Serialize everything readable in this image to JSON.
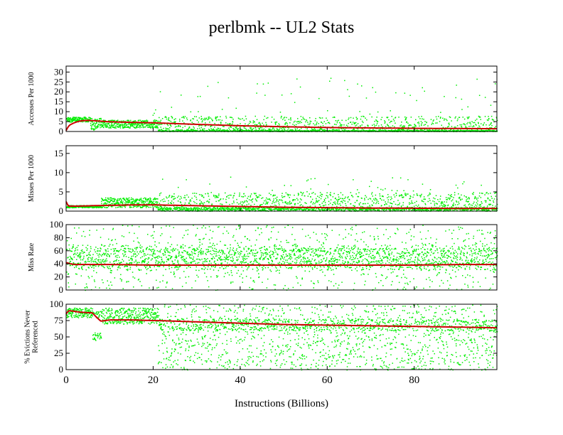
{
  "title": "perlbmk -- UL2  Stats",
  "xlabel": "Instructions (Billions)",
  "colors": {
    "scatter": "#00ee00",
    "trend": "#cc0000",
    "frame": "#000000"
  },
  "chart_data": [
    {
      "type": "scatter",
      "ylabel_lines": [
        "Accesses Per 1000"
      ],
      "xlim": [
        0,
        99
      ],
      "ylim": [
        0,
        33
      ],
      "yticks": [
        0,
        5,
        10,
        15,
        20,
        25,
        30
      ],
      "xticks": [
        0,
        20,
        40,
        60,
        80
      ],
      "trend": {
        "x": [
          0,
          0.5,
          1,
          2,
          3,
          4,
          5,
          6,
          8,
          10,
          15,
          20,
          21,
          30,
          40,
          50,
          60,
          70,
          80,
          90,
          99
        ],
        "y": [
          0.5,
          2.5,
          3.5,
          4.5,
          5.2,
          5.5,
          5.6,
          5.5,
          5.2,
          4.9,
          4.6,
          4.4,
          4.3,
          3.6,
          2.9,
          2.4,
          2.0,
          1.8,
          1.6,
          1.5,
          1.4
        ]
      }
    },
    {
      "type": "scatter",
      "ylabel_lines": [
        "Misses Per 1000"
      ],
      "xlim": [
        0,
        99
      ],
      "ylim": [
        0,
        17
      ],
      "yticks": [
        0,
        5,
        10,
        15
      ],
      "xticks": [
        0,
        20,
        40,
        60,
        80
      ],
      "trend": {
        "x": [
          0,
          0.5,
          1,
          3,
          6,
          10,
          15,
          20,
          21,
          30,
          40,
          50,
          60,
          70,
          80,
          90,
          99
        ],
        "y": [
          2.5,
          1.3,
          1.3,
          1.3,
          1.4,
          1.5,
          1.6,
          1.6,
          1.6,
          1.4,
          1.2,
          1.0,
          0.9,
          0.8,
          0.75,
          0.7,
          0.7
        ]
      }
    },
    {
      "type": "scatter",
      "ylabel_lines": [
        "Miss Rate"
      ],
      "xlim": [
        0,
        99
      ],
      "ylim": [
        0,
        100
      ],
      "yticks": [
        0,
        20,
        40,
        60,
        80,
        100
      ],
      "xticks": [
        0,
        20,
        40,
        60,
        80
      ],
      "trend": {
        "x": [
          0,
          1,
          2,
          5,
          10,
          20,
          30,
          40,
          50,
          60,
          70,
          80,
          90,
          99
        ],
        "y": [
          42,
          40,
          39,
          39,
          39,
          38,
          38,
          38,
          38,
          38,
          38,
          38,
          39,
          39
        ]
      }
    },
    {
      "type": "scatter",
      "ylabel_lines": [
        "% Evictions Never",
        "Referenced"
      ],
      "xlim": [
        0,
        99
      ],
      "ylim": [
        0,
        100
      ],
      "yticks": [
        0,
        25,
        50,
        75,
        100
      ],
      "xticks": [
        0,
        20,
        40,
        60,
        80
      ],
      "trend": {
        "x": [
          0,
          0.5,
          1,
          3,
          5,
          6,
          7,
          8,
          10,
          15,
          20,
          21,
          30,
          40,
          50,
          60,
          70,
          80,
          90,
          99
        ],
        "y": [
          85,
          90,
          90,
          88,
          87,
          87,
          80,
          74,
          76,
          76,
          75,
          75,
          73,
          71,
          69,
          68,
          67,
          66,
          65,
          64
        ]
      }
    }
  ]
}
